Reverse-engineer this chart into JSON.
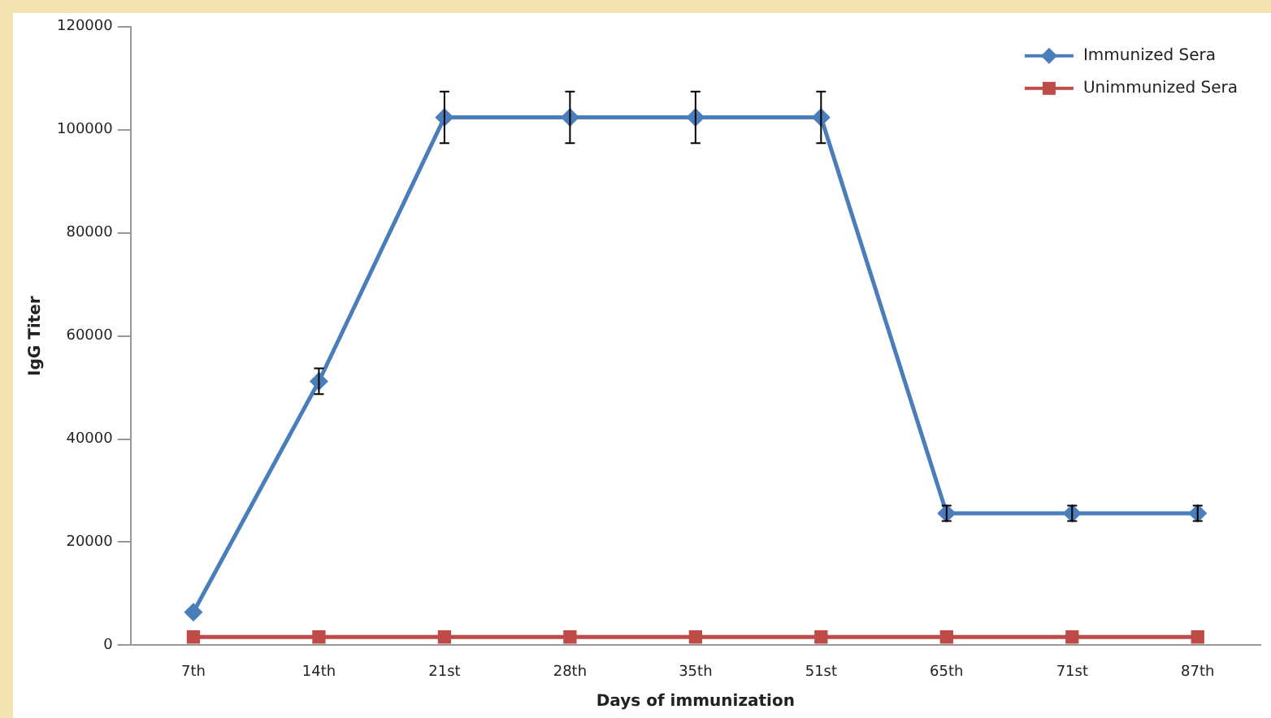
{
  "chart_data": {
    "type": "line",
    "xlabel": "Days of immunization",
    "ylabel": "IgG Titer",
    "categories": [
      "7th",
      "14th",
      "21st",
      "28th",
      "35th",
      "51st",
      "65th",
      "71st",
      "87th"
    ],
    "series": [
      {
        "name": "Immunized Sera",
        "color": "#4a7ebb",
        "marker": "diamond",
        "values": [
          6400,
          51200,
          102400,
          102400,
          102400,
          102400,
          25600,
          25600,
          25600
        ],
        "errors": [
          null,
          2500,
          5000,
          5000,
          5000,
          5000,
          1500,
          1500,
          1500
        ]
      },
      {
        "name": "Unimmunized Sera",
        "color": "#be4b48",
        "marker": "square",
        "values": [
          1600,
          1600,
          1600,
          1600,
          1600,
          1600,
          1600,
          1600,
          1600
        ]
      }
    ],
    "ylim": [
      0,
      120000
    ],
    "yticks": [
      0,
      20000,
      40000,
      60000,
      80000,
      100000,
      120000
    ],
    "grid": false,
    "legend": "top right"
  }
}
